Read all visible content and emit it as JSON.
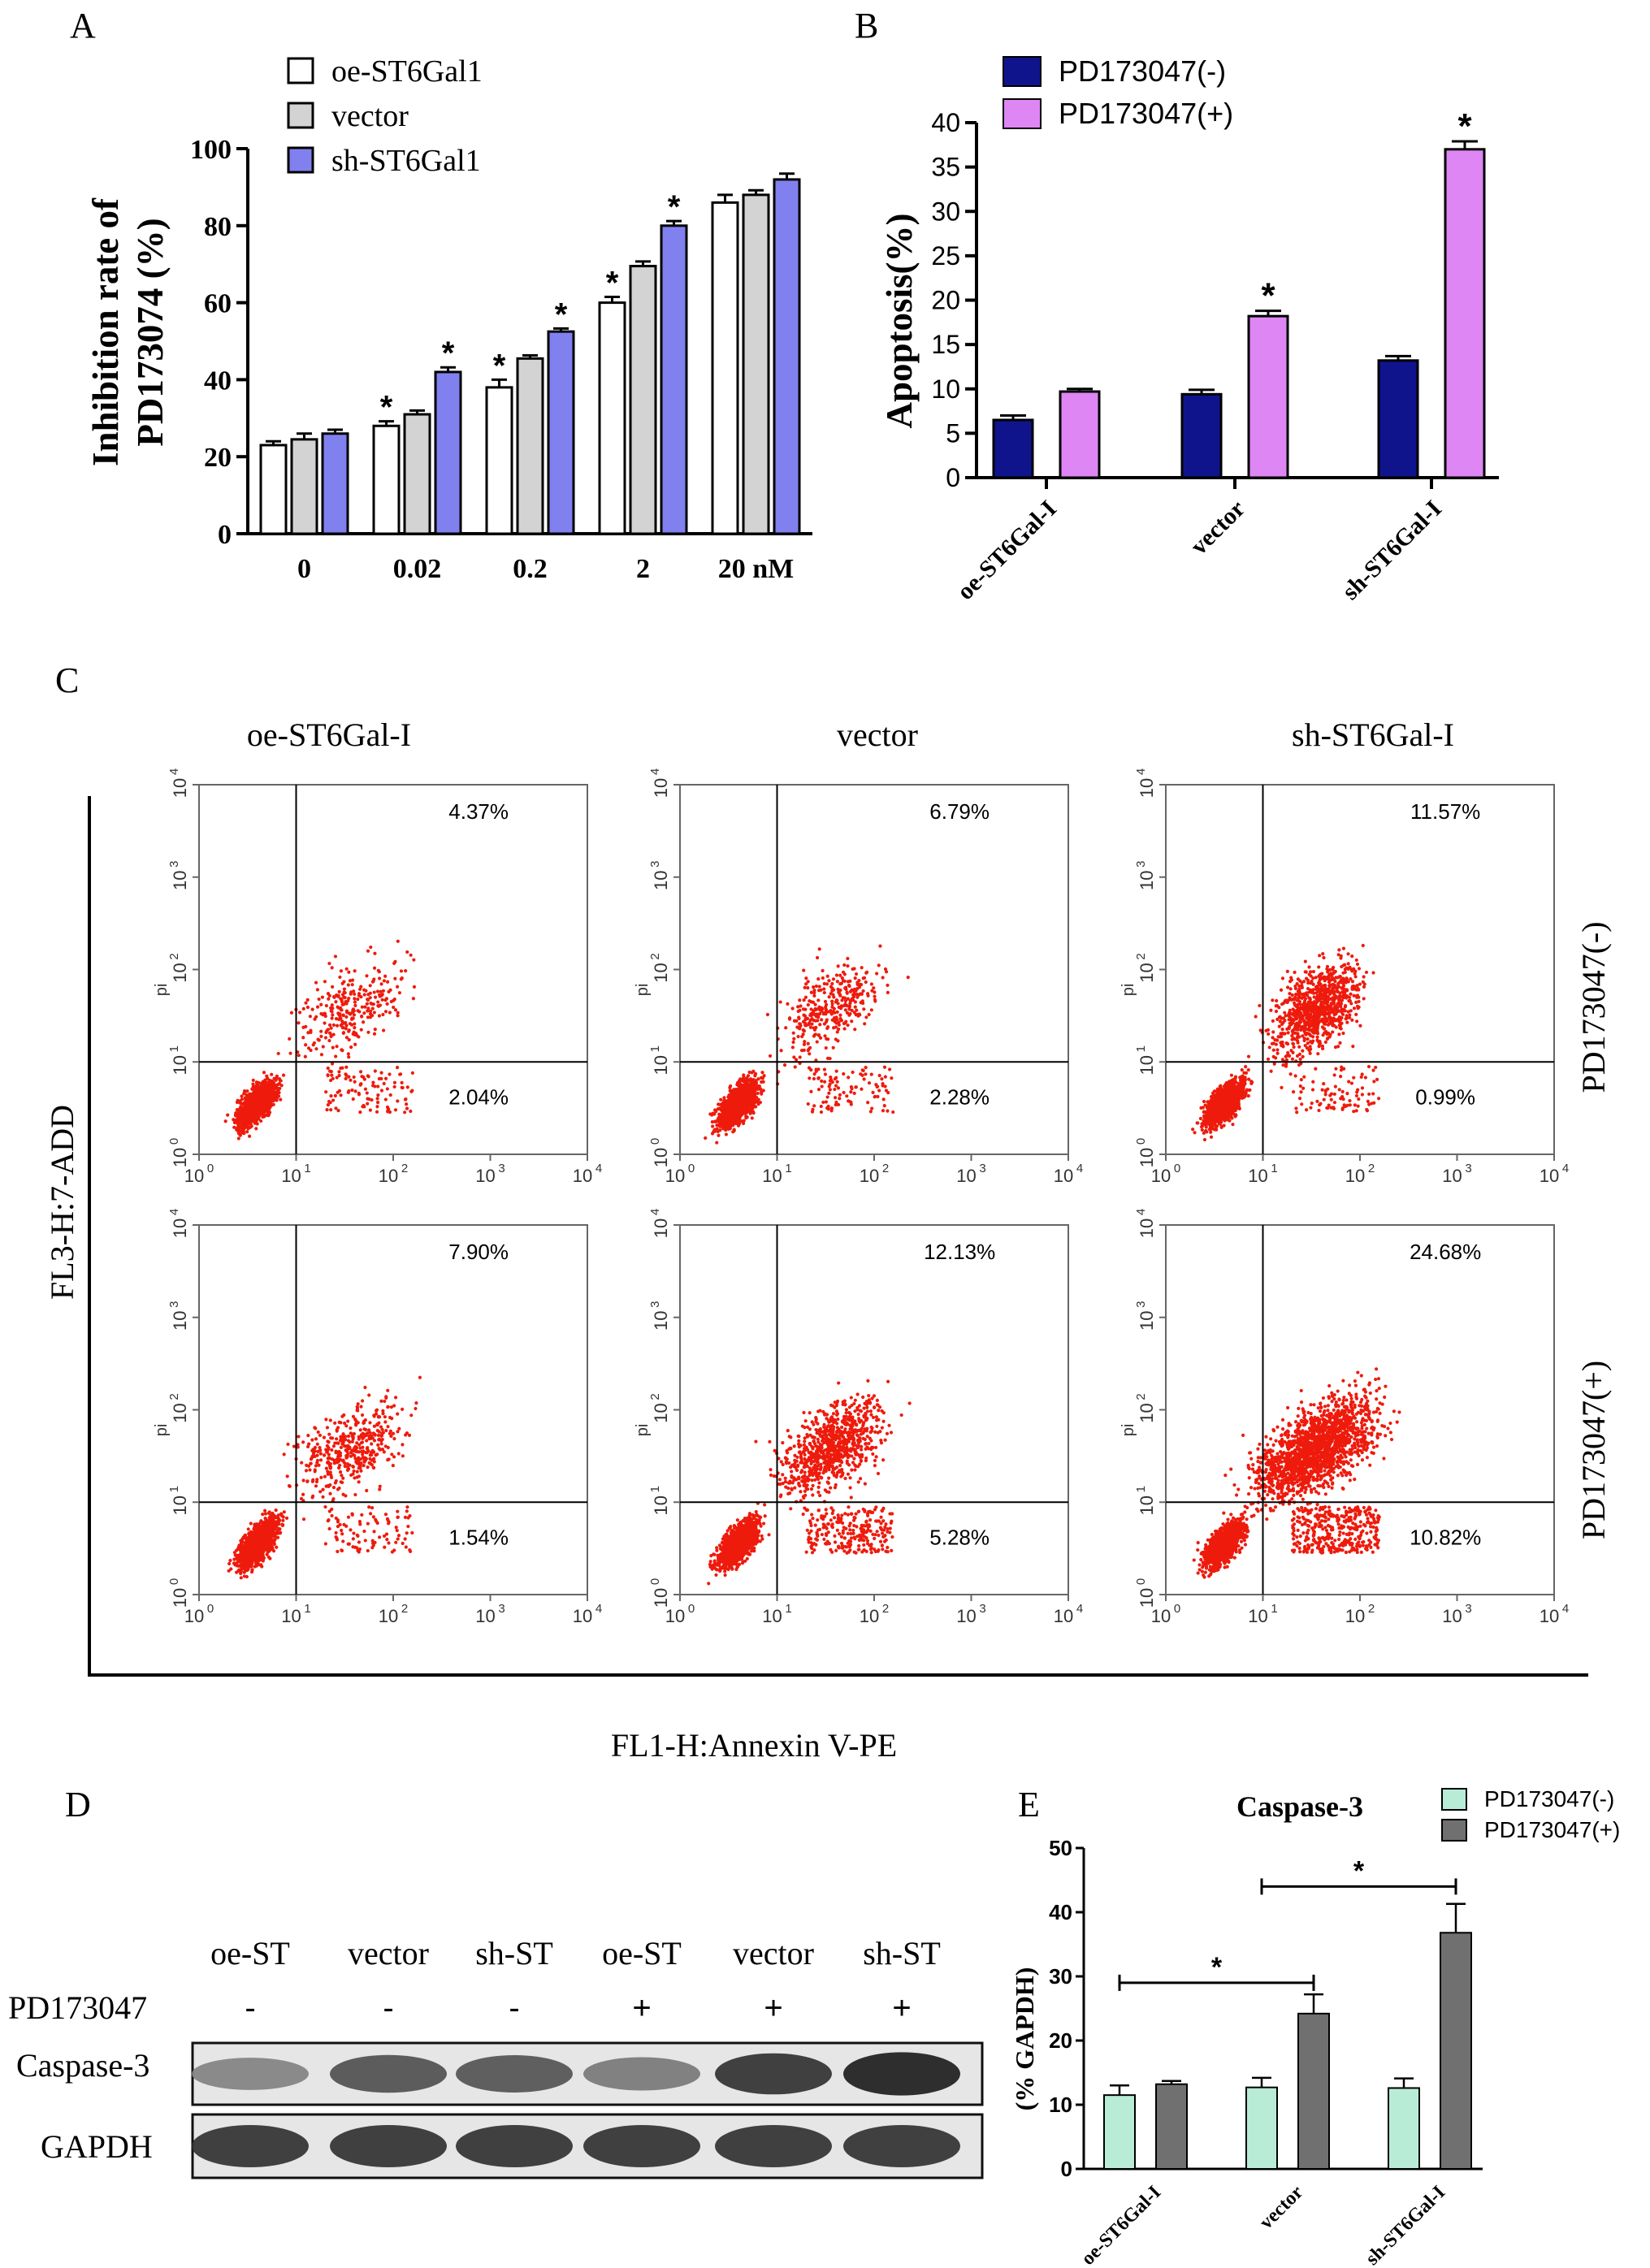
{
  "colors": {
    "oe": "#ffffff",
    "vector_gray": "#d3d3d3",
    "sh_blue": "#8080ee",
    "pd_minus_navy": "#10148c",
    "pd_plus_violet": "#de86f4",
    "dots_red": "#ee1b0d",
    "mint": "#b8ecd6",
    "dark_gray": "#707070"
  },
  "panel_labels": {
    "A": "A",
    "B": "B",
    "C": "C",
    "D": "D",
    "E": "E"
  },
  "chart_data": [
    {
      "id": "A",
      "type": "bar",
      "ylabel_line1": "Inhibition rate of",
      "ylabel_line2": "PD173074 (%)",
      "categories": [
        "0",
        "0.02",
        "0.2",
        "2",
        "20 nM"
      ],
      "ylim": [
        0,
        100
      ],
      "yticks": [
        0,
        20,
        40,
        60,
        80,
        100
      ],
      "ytick_labels": [
        "0",
        "20",
        "40",
        "60",
        "80",
        "100"
      ],
      "significance_mark": "*",
      "series": [
        {
          "name": "oe-ST6Gal1",
          "color_key": "oe",
          "values": [
            23,
            28,
            38,
            60,
            86
          ],
          "errors": [
            1.0,
            1.2,
            2.0,
            1.5,
            2.0
          ],
          "sig": [
            false,
            true,
            true,
            true,
            false
          ]
        },
        {
          "name": "vector",
          "color_key": "vector_gray",
          "values": [
            24.5,
            31,
            45.5,
            69.5,
            88
          ],
          "errors": [
            1.5,
            1.0,
            0.8,
            1.2,
            1.2
          ],
          "sig": [
            false,
            false,
            false,
            false,
            false
          ]
        },
        {
          "name": "sh-ST6Gal1",
          "color_key": "sh_blue",
          "values": [
            26,
            42,
            52.5,
            80,
            92
          ],
          "errors": [
            1.0,
            1.2,
            0.8,
            1.2,
            1.5
          ],
          "sig": [
            false,
            true,
            true,
            true,
            false
          ]
        }
      ]
    },
    {
      "id": "B",
      "type": "bar",
      "ylabel": "Apoptosis(%)",
      "categories": [
        "oe-ST6Gal-I",
        "vector",
        "sh-ST6Gal-I"
      ],
      "ylim": [
        0,
        40
      ],
      "yticks": [
        0,
        5,
        10,
        15,
        20,
        25,
        30,
        35,
        40
      ],
      "ytick_labels": [
        "0",
        "5",
        "10",
        "15",
        "20",
        "25",
        "30",
        "35",
        "40"
      ],
      "significance_mark": "*",
      "series": [
        {
          "name": "PD173047(-)",
          "color_key": "pd_minus_navy",
          "values": [
            6.5,
            9.4,
            13.2
          ],
          "errors": [
            0.5,
            0.5,
            0.5
          ],
          "sig": [
            false,
            false,
            false
          ]
        },
        {
          "name": "PD173047(+)",
          "color_key": "pd_plus_violet",
          "values": [
            9.7,
            18.2,
            37
          ],
          "errors": [
            0.3,
            0.6,
            0.9
          ],
          "sig": [
            false,
            true,
            true
          ]
        }
      ]
    },
    {
      "id": "C",
      "type": "scatter",
      "xlabel": "FL1-H:Annexin V-PE",
      "ylabel": "FL3-H:7-ADD",
      "axis_label_pi": "pi",
      "tick_exponents": [
        "0",
        "1",
        "2",
        "3",
        "4"
      ],
      "tick_base": "10",
      "column_titles": [
        "oe-ST6Gal-I",
        "vector",
        "sh-ST6Gal-I"
      ],
      "row_titles": [
        "PD173047(-)",
        "PD173047(+)"
      ],
      "plots": [
        {
          "upper_right": "4.37%",
          "lower_right": "2.04%",
          "late_fraction": 0.18,
          "early_fraction": 0.06,
          "n": 1700,
          "spread": 0.9
        },
        {
          "upper_right": "6.79%",
          "lower_right": "2.28%",
          "late_fraction": 0.2,
          "early_fraction": 0.06,
          "n": 1700,
          "spread": 0.85
        },
        {
          "upper_right": "11.57%",
          "lower_right": "0.99%",
          "late_fraction": 0.42,
          "early_fraction": 0.04,
          "n": 2300,
          "spread": 0.75
        },
        {
          "upper_right": "7.90%",
          "lower_right": "1.54%",
          "late_fraction": 0.24,
          "early_fraction": 0.05,
          "n": 1900,
          "spread": 0.9
        },
        {
          "upper_right": "12.13%",
          "lower_right": "5.28%",
          "late_fraction": 0.36,
          "early_fraction": 0.1,
          "n": 2300,
          "spread": 0.85
        },
        {
          "upper_right": "24.68%",
          "lower_right": "10.82%",
          "late_fraction": 0.55,
          "early_fraction": 0.12,
          "n": 3200,
          "spread": 1.0
        }
      ]
    },
    {
      "id": "E",
      "type": "bar",
      "title": "Caspase-3",
      "ylabel": "(% GAPDH)",
      "categories": [
        "oe-ST6Gal-I",
        "vector",
        "sh-ST6Gal-I"
      ],
      "ylim": [
        0,
        50
      ],
      "yticks": [
        0,
        10,
        20,
        30,
        40,
        50
      ],
      "ytick_labels": [
        "0",
        "10",
        "20",
        "30",
        "40",
        "50"
      ],
      "significance_mark": "*",
      "series": [
        {
          "name": "PD173047(-)",
          "color_key": "mint",
          "values": [
            11.5,
            12.7,
            12.6
          ],
          "errors": [
            1.5,
            1.5,
            1.5
          ]
        },
        {
          "name": "PD173047(+)",
          "color_key": "dark_gray",
          "values": [
            13.2,
            24.2,
            36.8
          ],
          "errors": [
            0.5,
            3.0,
            4.5
          ]
        }
      ],
      "brackets": [
        {
          "from_category": 0,
          "to_category": 1,
          "label": "*"
        },
        {
          "from_category": 1,
          "to_category": 2,
          "label": "*"
        }
      ]
    }
  ],
  "western_blot": {
    "lane_labels": [
      "oe-ST",
      "vector",
      "sh-ST",
      "oe-ST",
      "vector",
      "sh-ST"
    ],
    "treatment_label": "PD173047",
    "treatment_signs": [
      "-",
      "-",
      "-",
      "+",
      "+",
      "+"
    ],
    "rows": [
      {
        "label": "Caspase-3",
        "intensities": [
          0.45,
          0.7,
          0.68,
          0.5,
          0.85,
          0.95
        ]
      },
      {
        "label": "GAPDH",
        "intensities": [
          0.85,
          0.85,
          0.85,
          0.85,
          0.85,
          0.85
        ]
      }
    ]
  }
}
